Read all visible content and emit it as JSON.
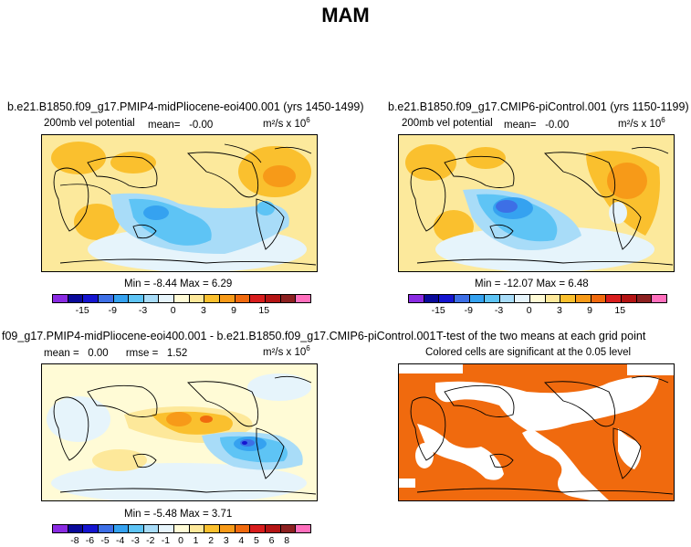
{
  "title": "MAM",
  "panels": {
    "p1": {
      "title": "b.e21.B1850.f09_g17.PMIP4-midPliocene-eoi400.001 (yrs 1450-1499)",
      "left_label": "200mb vel potential",
      "mean_label": "mean=",
      "mean_value": "-0.00",
      "units": "m²/s x 10",
      "units_exp": "6",
      "minmax": "Min = -8.44 Max = 6.29"
    },
    "p2": {
      "title": "b.e21.B1850.f09_g17.CMIP6-piControl.001 (yrs 1150-1199)",
      "left_label": "200mb vel potential",
      "mean_label": "mean=",
      "mean_value": "-0.00",
      "units": "m²/s x 10",
      "units_exp": "6",
      "minmax": "Min = -12.07 Max = 6.48"
    },
    "p3": {
      "title": "f09_g17.PMIP4-midPliocene-eoi400.001 - b.e21.B1850.f09_g17.CMIP6-piControl.001",
      "mean_label": "mean =",
      "mean_value": "0.00",
      "rmse_label": "rmse =",
      "rmse_value": "1.52",
      "units": "m²/s x 10",
      "units_exp": "6",
      "minmax": "Min = -5.48 Max = 3.71"
    },
    "p4": {
      "title": "T-test of the two means at each grid point",
      "subtitle": "Colored cells are significant at the 0.05 level"
    }
  },
  "colorbar_colors": [
    "#8a2be2",
    "#0a0a9a",
    "#1515d0",
    "#3d6fe6",
    "#35a2f0",
    "#5ec4f5",
    "#a8dcf8",
    "#e6f4fb",
    "#fffbd6",
    "#fde89a",
    "#fac02e",
    "#f79a18",
    "#f06a0e",
    "#d81d1d",
    "#b41414",
    "#8c2020",
    "#ff6fbd"
  ],
  "colorbar_ticks_a": [
    "-15",
    "-9",
    "-3",
    "0",
    "3",
    "9",
    "15"
  ],
  "colorbar_ticks_b": [
    "-8",
    "-6",
    "-5",
    "-4",
    "-3",
    "-2",
    "-1",
    "0",
    "1",
    "2",
    "3",
    "4",
    "5",
    "6",
    "8"
  ]
}
